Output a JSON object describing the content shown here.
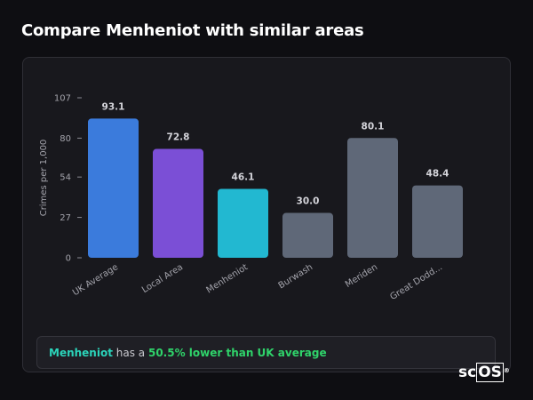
{
  "page": {
    "title": "Compare Menheniot with similar areas"
  },
  "chart_data": {
    "type": "bar",
    "title": "Compare Menheniot with similar areas",
    "ylabel": "Crimes per 1,000",
    "xlabel": "",
    "categories": [
      "UK Average",
      "Local Area",
      "Menheniot",
      "Burwash",
      "Meriden",
      "Great Dodd..."
    ],
    "values": [
      93.1,
      72.8,
      46.1,
      30.0,
      80.1,
      48.4
    ],
    "value_labels": [
      "93.1",
      "72.8",
      "46.1",
      "30.0",
      "80.1",
      "48.4"
    ],
    "colors": [
      "#3b7bdc",
      "#7b4fd6",
      "#22b8d1",
      "#5f6878",
      "#5f6878",
      "#5f6878"
    ],
    "yticks": [
      0,
      27,
      54,
      80,
      107
    ],
    "ylim": [
      0,
      107
    ],
    "grid": false,
    "legend": "none"
  },
  "summary": {
    "place": "Menheniot",
    "middle": " has a ",
    "delta": "50.5% lower than UK average"
  },
  "brand": {
    "prefix": "sc",
    "boxed": "OS",
    "mark": "®"
  },
  "colors": {
    "background": "#0e0e12",
    "card": "#18181d",
    "accent_place": "#2bd4ba",
    "accent_delta": "#2fd36a"
  }
}
